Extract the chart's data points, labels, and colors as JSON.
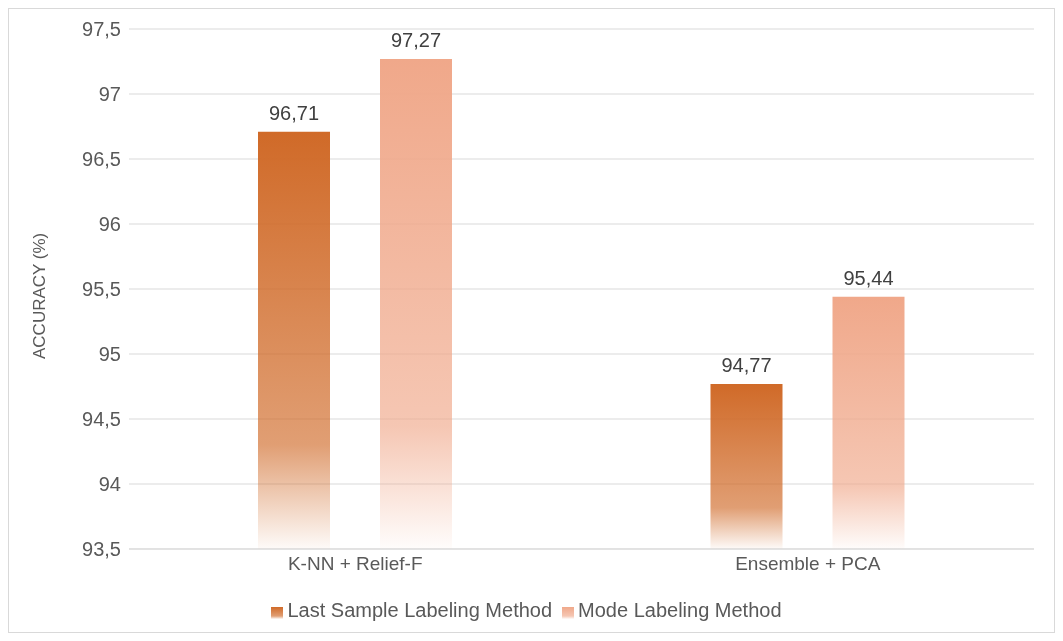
{
  "chart_data": {
    "type": "bar",
    "ylabel": "ACCURACY (%)",
    "categories": [
      "K-NN + Relief-F",
      "Ensemble + PCA"
    ],
    "series": [
      {
        "name": "Last Sample Labeling Method",
        "color": "#d06a28",
        "values": [
          96.71,
          94.77
        ],
        "value_labels": [
          "96,71",
          "94,77"
        ]
      },
      {
        "name": "Mode Labeling Method",
        "color": "#f0a88a",
        "values": [
          97.27,
          95.44
        ],
        "value_labels": [
          "97,27",
          "95,44"
        ]
      }
    ],
    "ylim": [
      93.5,
      97.5
    ],
    "yticks": [
      {
        "value": 93.5,
        "label": "93,5"
      },
      {
        "value": 94,
        "label": "94"
      },
      {
        "value": 94.5,
        "label": "94,5"
      },
      {
        "value": 95,
        "label": "95"
      },
      {
        "value": 95.5,
        "label": "95,5"
      },
      {
        "value": 96,
        "label": "96"
      },
      {
        "value": 96.5,
        "label": "96,5"
      },
      {
        "value": 97,
        "label": "97"
      },
      {
        "value": 97.5,
        "label": "97,5"
      }
    ],
    "grid": "y",
    "legend": "bottom"
  }
}
